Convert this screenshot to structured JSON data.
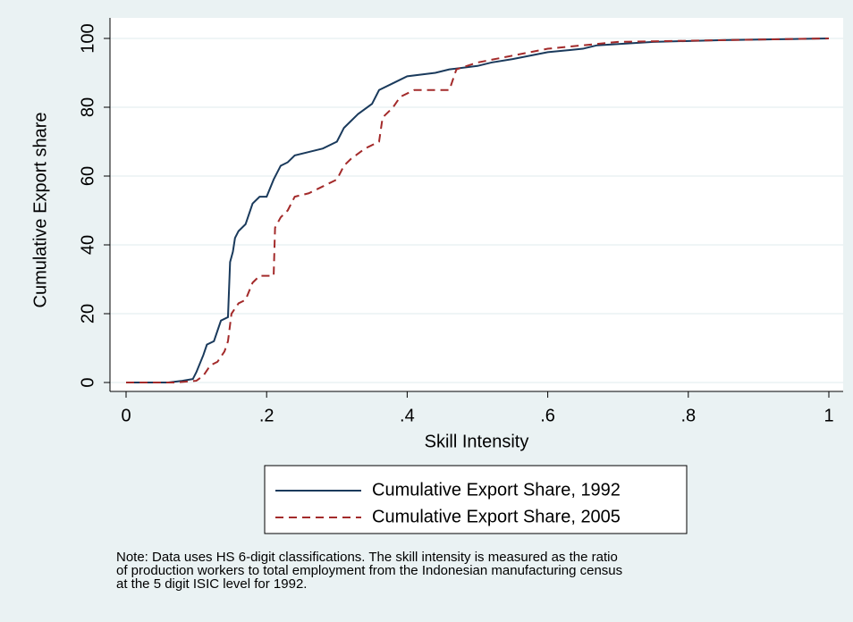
{
  "chart_data": {
    "type": "line",
    "x_label": "Skill Intensity",
    "y_label": "Cumulative Export share",
    "xlim": [
      0,
      1
    ],
    "ylim": [
      0,
      100
    ],
    "xticks": [
      0,
      {
        "value": 0.2,
        "label": ".2"
      },
      {
        "value": 0.4,
        "label": ".4"
      },
      {
        "value": 0.6,
        "label": ".6"
      },
      {
        "value": 0.8,
        "label": ".8"
      },
      1
    ],
    "yticks": [
      0,
      20,
      40,
      60,
      80,
      100
    ],
    "grid": true,
    "series": [
      {
        "name": "Cumulative Export Share, 1992",
        "color": "#1a3a5c",
        "style": "solid",
        "x": [
          0,
          0.06,
          0.08,
          0.095,
          0.1,
          0.11,
          0.115,
          0.125,
          0.13,
          0.135,
          0.145,
          0.148,
          0.152,
          0.155,
          0.16,
          0.17,
          0.18,
          0.19,
          0.2,
          0.21,
          0.22,
          0.23,
          0.24,
          0.26,
          0.28,
          0.3,
          0.31,
          0.32,
          0.33,
          0.35,
          0.36,
          0.38,
          0.4,
          0.44,
          0.46,
          0.5,
          0.52,
          0.55,
          0.6,
          0.65,
          0.67,
          0.75,
          0.85,
          1
        ],
        "values": [
          0,
          0,
          0.5,
          1,
          3,
          8,
          11,
          12,
          15,
          18,
          19,
          35,
          38,
          42,
          44,
          46,
          52,
          54,
          54,
          59,
          63,
          64,
          66,
          67,
          68,
          70,
          74,
          76,
          78,
          81,
          85,
          87,
          89,
          90,
          91,
          92,
          93,
          94,
          96,
          97,
          98,
          99,
          99.5,
          100
        ]
      },
      {
        "name": "Cumulative Export Share, 2005",
        "color": "#a32a2a",
        "style": "dashed",
        "x": [
          0,
          0.07,
          0.1,
          0.11,
          0.12,
          0.13,
          0.14,
          0.145,
          0.15,
          0.16,
          0.17,
          0.18,
          0.19,
          0.21,
          0.212,
          0.22,
          0.23,
          0.24,
          0.26,
          0.28,
          0.3,
          0.31,
          0.32,
          0.34,
          0.36,
          0.365,
          0.38,
          0.39,
          0.41,
          0.46,
          0.47,
          0.5,
          0.55,
          0.6,
          0.65,
          0.7,
          1
        ],
        "values": [
          0,
          0,
          0.5,
          2,
          5,
          6,
          9,
          12,
          20,
          23,
          24,
          29,
          31,
          31,
          45,
          48,
          50,
          54,
          55,
          57,
          59,
          63,
          65,
          68,
          70,
          77,
          80,
          83,
          85,
          85,
          91,
          93,
          95,
          97,
          98,
          99,
          100
        ]
      }
    ],
    "note": [
      "Note:  Data uses HS 6-digit classifications. The skill intensity is measured as the ratio",
      "of production workers to total employment from the Indonesian manufacturing census",
      "at the 5 digit ISIC level for 1992."
    ]
  }
}
